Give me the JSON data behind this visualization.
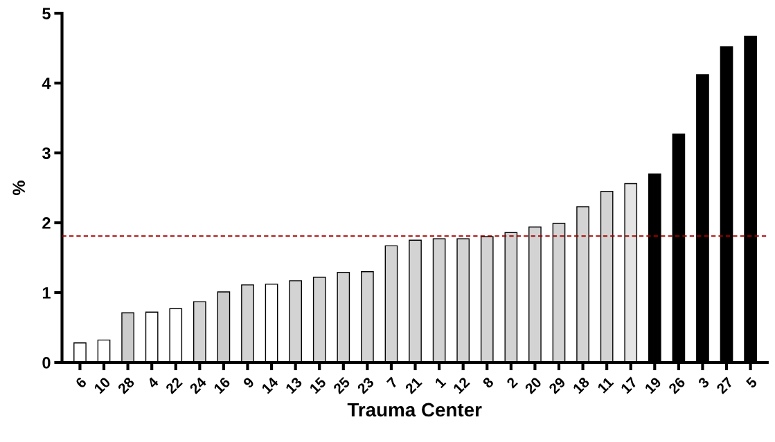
{
  "chart_data": {
    "type": "bar",
    "xlabel": "Trauma Center",
    "ylabel": "%",
    "categories": [
      "6",
      "10",
      "28",
      "4",
      "22",
      "24",
      "16",
      "9",
      "14",
      "13",
      "15",
      "25",
      "23",
      "7",
      "21",
      "1",
      "12",
      "8",
      "2",
      "20",
      "29",
      "18",
      "11",
      "17",
      "19",
      "26",
      "3",
      "27",
      "5"
    ],
    "values": [
      0.28,
      0.32,
      0.71,
      0.72,
      0.77,
      0.87,
      1.01,
      1.11,
      1.12,
      1.17,
      1.22,
      1.29,
      1.3,
      1.67,
      1.75,
      1.77,
      1.77,
      1.8,
      1.86,
      1.94,
      1.99,
      2.23,
      2.45,
      2.56,
      2.7,
      3.27,
      4.12,
      4.52,
      4.67
    ],
    "colors": [
      "#ffffff",
      "#ffffff",
      "#cbcbcb",
      "#ffffff",
      "#ffffff",
      "#d3d3d3",
      "#cbcbcb",
      "#d3d3d3",
      "#ffffff",
      "#d3d3d3",
      "#d3d3d3",
      "#d3d3d3",
      "#d3d3d3",
      "#d3d3d3",
      "#d3d3d3",
      "#d3d3d3",
      "#d3d3d3",
      "#d3d3d3",
      "#d3d3d3",
      "#d3d3d3",
      "#d3d3d3",
      "#d3d3d3",
      "#d3d3d3",
      "#e4e4e4",
      "#000000",
      "#000000",
      "#000000",
      "#000000",
      "#000000"
    ],
    "ylim": [
      0,
      5
    ],
    "yticks": [
      0,
      1,
      2,
      3,
      4,
      5
    ],
    "grid": false,
    "ref_lines": [
      {
        "axis": "y",
        "value": 1.81,
        "color": "#a50000",
        "line_style": "dashed"
      }
    ]
  }
}
